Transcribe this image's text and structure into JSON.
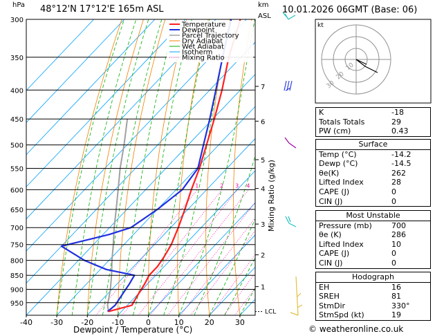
{
  "header": {
    "pressure_unit": "hPa",
    "location": "48°12'N  17°12'E  165m  ASL",
    "height_unit": "km",
    "height_unit2": "ASL",
    "datetime": "10.01.2026  06GMT  (Base: 06)"
  },
  "hodograph": {
    "label": "kt",
    "ring_labels": [
      "10",
      "20",
      "30"
    ]
  },
  "legend": [
    "Temperature",
    "Dewpoint",
    "Parcel Trajectory",
    "Dry Adiabat",
    "Wet Adiabat",
    "Isotherm",
    "Mixing Ratio"
  ],
  "colors": {
    "temperature": "#ff2020",
    "dewpoint": "#2030e0",
    "parcel": "#a0a0a0",
    "dry_adiabat": "#f08000",
    "wet_adiabat": "#00b000",
    "isotherm": "#00a0ff",
    "mixing_ratio": "#ff00a0"
  },
  "chart_data": {
    "type": "line",
    "title": "Skew-T log-P diagram",
    "xlabel": "Dewpoint / Temperature (°C)",
    "ylabel": "hPa",
    "ylabel_right": "Mixing Ratio (g/kg)",
    "xlim": [
      -40,
      35
    ],
    "x_ticks": [
      -40,
      -30,
      -20,
      -10,
      0,
      10,
      20,
      30
    ],
    "pressure_levels": [
      300,
      350,
      400,
      450,
      500,
      550,
      600,
      650,
      700,
      750,
      800,
      850,
      900,
      950
    ],
    "km_ticks": [
      {
        "km": "7",
        "p": 394
      },
      {
        "km": "6",
        "p": 454
      },
      {
        "km": "5",
        "p": 531
      },
      {
        "km": "4",
        "p": 597
      },
      {
        "km": "3",
        "p": 690
      },
      {
        "km": "2",
        "p": 782
      },
      {
        "km": "1",
        "p": 890
      }
    ],
    "lcl_label": "LCL",
    "mixing_ratio_labels": [
      "1",
      "2",
      "3",
      "4",
      "6",
      "8",
      "10",
      "15",
      "20",
      "25"
    ],
    "series": [
      {
        "name": "Temperature",
        "points": [
          [
            985,
            -14.2
          ],
          [
            960,
            -8.5
          ],
          [
            920,
            -9.8
          ],
          [
            880,
            -11.0
          ],
          [
            850,
            -12.2
          ],
          [
            820,
            -12.2
          ],
          [
            790,
            -13.0
          ],
          [
            750,
            -14.5
          ],
          [
            700,
            -17.5
          ],
          [
            650,
            -21.0
          ],
          [
            600,
            -25.0
          ],
          [
            550,
            -29.0
          ],
          [
            500,
            -34.0
          ],
          [
            450,
            -39.5
          ],
          [
            400,
            -46.0
          ],
          [
            350,
            -54.0
          ],
          [
            300,
            -62.0
          ]
        ]
      },
      {
        "name": "Dewpoint",
        "points": [
          [
            985,
            -14.5
          ],
          [
            960,
            -14.0
          ],
          [
            920,
            -15.0
          ],
          [
            880,
            -16.0
          ],
          [
            850,
            -17.0
          ],
          [
            830,
            -28.0
          ],
          [
            800,
            -38.0
          ],
          [
            755,
            -50.0
          ],
          [
            720,
            -38.0
          ],
          [
            700,
            -33.0
          ],
          [
            650,
            -30.0
          ],
          [
            600,
            -28.0
          ],
          [
            550,
            -29.5
          ],
          [
            500,
            -35.0
          ],
          [
            450,
            -41.0
          ],
          [
            400,
            -48.0
          ],
          [
            350,
            -56.0
          ],
          [
            300,
            -65.0
          ]
        ]
      },
      {
        "name": "Parcel Trajectory",
        "points": [
          [
            985,
            -14.2
          ],
          [
            960,
            -16.5
          ],
          [
            900,
            -20.5
          ],
          [
            850,
            -24.5
          ],
          [
            800,
            -29.0
          ],
          [
            750,
            -33.5
          ],
          [
            700,
            -38.5
          ],
          [
            650,
            -43.5
          ],
          [
            600,
            -49.0
          ],
          [
            550,
            -55.0
          ],
          [
            500,
            -61.0
          ],
          [
            450,
            -68.0
          ]
        ]
      }
    ]
  },
  "indices": [
    {
      "label": "K",
      "value": "-18"
    },
    {
      "label": "Totals Totals",
      "value": "29"
    },
    {
      "label": "PW (cm)",
      "value": "0.43"
    }
  ],
  "surface": {
    "title": "Surface",
    "rows": [
      {
        "label": "Temp (°C)",
        "value": "-14.2"
      },
      {
        "label": "Dewp (°C)",
        "value": "-14.5"
      },
      {
        "label": "θe(K)",
        "value": "262"
      },
      {
        "label": "Lifted Index",
        "value": "28"
      },
      {
        "label": "CAPE (J)",
        "value": "0"
      },
      {
        "label": "CIN (J)",
        "value": "0"
      }
    ]
  },
  "most_unstable": {
    "title": "Most Unstable",
    "rows": [
      {
        "label": "Pressure (mb)",
        "value": "700"
      },
      {
        "label": "θe (K)",
        "value": "286"
      },
      {
        "label": "Lifted Index",
        "value": "10"
      },
      {
        "label": "CAPE (J)",
        "value": "0"
      },
      {
        "label": "CIN (J)",
        "value": "0"
      }
    ]
  },
  "hodograph_table": {
    "title": "Hodograph",
    "rows": [
      {
        "label": "EH",
        "value": "16"
      },
      {
        "label": "SREH",
        "value": "81"
      },
      {
        "label": "StmDir",
        "value": "330°"
      },
      {
        "label": "StmSpd (kt)",
        "value": "19"
      }
    ]
  },
  "footer": {
    "copyright": "© weatheronline.co.uk"
  }
}
